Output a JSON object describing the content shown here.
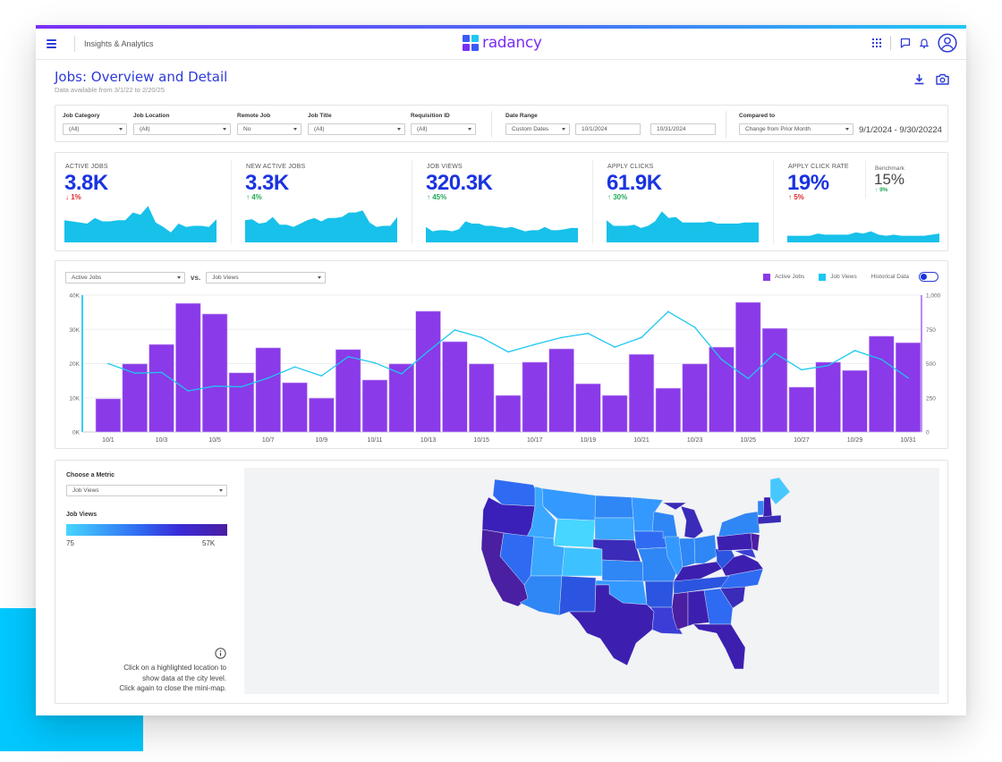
{
  "header": {
    "section_title": "Insights & Analytics",
    "brand": "radancy",
    "icons": [
      "menu-icon",
      "apps-grid-icon",
      "chat-icon",
      "bell-icon",
      "user-avatar-icon"
    ]
  },
  "page": {
    "title": "Jobs: Overview and Detail",
    "subtitle": "Data available from 3/1/22 to 2/20/25",
    "actions": [
      "download-icon",
      "camera-icon"
    ]
  },
  "filters": {
    "job_category": {
      "label": "Job Category",
      "value": "(All)"
    },
    "job_location": {
      "label": "Job Location",
      "value": "(All)"
    },
    "remote_job": {
      "label": "Remote Job",
      "value": "No"
    },
    "job_title": {
      "label": "Job Title",
      "value": "(All)"
    },
    "requisition_id": {
      "label": "Requisition ID",
      "value": "(All)"
    },
    "date_range": {
      "label": "Date Range",
      "value": "Custom Dates",
      "start": "10/1/2024",
      "end": "10/31/2024"
    },
    "compared_to": {
      "label": "Compared to",
      "value": "Change from Prior Month",
      "range_text": "9/1/2024 - 9/30/20224"
    }
  },
  "kpis": [
    {
      "label": "ACTIVE JOBS",
      "value": "3.8K",
      "delta": "1%",
      "direction": "down",
      "arrow": "↓",
      "spark": [
        20,
        19,
        18,
        17,
        22,
        19,
        19,
        20,
        20,
        27,
        25,
        33,
        18,
        14,
        9,
        17,
        14,
        15,
        15,
        14,
        21
      ]
    },
    {
      "label": "NEW ACTIVE JOBS",
      "value": "3.3K",
      "delta": "4%",
      "direction": "up",
      "arrow": "↑",
      "spark": [
        20,
        21,
        17,
        18,
        23,
        16,
        16,
        14,
        17,
        20,
        22,
        19,
        22,
        22,
        23,
        27,
        27,
        29,
        18,
        14,
        15,
        15,
        23
      ]
    },
    {
      "label": "JOB VIEWS",
      "value": "320.3K",
      "delta": "45%",
      "direction": "up",
      "arrow": "↑",
      "spark": [
        14,
        10,
        11,
        11,
        10,
        12,
        19,
        17,
        17,
        15,
        15,
        14,
        13,
        14,
        12,
        10,
        11,
        11,
        14,
        11,
        11,
        12,
        13,
        13
      ]
    },
    {
      "label": "APPLY CLICKS",
      "value": "61.9K",
      "delta": "30%",
      "direction": "up",
      "arrow": "↑",
      "spark": [
        20,
        15,
        15,
        15,
        16,
        13,
        15,
        19,
        28,
        22,
        23,
        18,
        18,
        18,
        18,
        19,
        17,
        17,
        17,
        17,
        18,
        18,
        18
      ]
    },
    {
      "label": "APPLY CLICK RATE",
      "value": "19%",
      "delta": "5%",
      "direction": "up_red",
      "arrow": "↑",
      "spark": [
        6,
        6,
        6,
        6,
        8,
        7,
        7,
        7,
        7,
        9,
        8,
        10,
        7,
        6,
        7,
        6,
        6,
        6,
        6,
        7,
        8
      ],
      "benchmark": {
        "label": "Benchmark",
        "value": "15%",
        "delta": "9%",
        "arrow": "↑"
      }
    }
  ],
  "combo_chart": {
    "primary_select": "Active Jobs",
    "vs_label": "vs.",
    "secondary_select": "Job Views",
    "legend": [
      {
        "label": "Active Jobs",
        "color": "#8a3ae8"
      },
      {
        "label": "Job Views",
        "color": "#1ec8f0"
      }
    ],
    "toggle_label": "Historical Data",
    "toggle_on": true
  },
  "chart_data": {
    "type": "bar",
    "title": "",
    "categories": [
      "10/1",
      "10/2",
      "10/3",
      "10/4",
      "10/5",
      "10/6",
      "10/7",
      "10/8",
      "10/9",
      "10/10",
      "10/11",
      "10/12",
      "10/13",
      "10/14",
      "10/15",
      "10/16",
      "10/17",
      "10/18",
      "10/19",
      "10/20",
      "10/21",
      "10/22",
      "10/23",
      "10/24",
      "10/25",
      "10/26",
      "10/27",
      "10/28",
      "10/29",
      "10/30",
      "10/31"
    ],
    "x_tick_labels": [
      "10/1",
      "10/3",
      "10/5",
      "10/7",
      "10/9",
      "10/11",
      "10/13",
      "10/15",
      "10/17",
      "10/19",
      "10/21",
      "10/23",
      "10/25",
      "10/27",
      "10/29",
      "10/31"
    ],
    "series": [
      {
        "name": "Active Jobs",
        "type": "bar",
        "axis": "left",
        "values": [
          9700,
          19900,
          25600,
          37600,
          34500,
          17300,
          24600,
          14400,
          9900,
          24100,
          15200,
          19900,
          35300,
          26400,
          19900,
          10700,
          20400,
          24300,
          14100,
          10700,
          22700,
          12800,
          19900,
          24800,
          37900,
          30300,
          13100,
          20400,
          18000,
          28000,
          26100
        ]
      },
      {
        "name": "Job Views",
        "type": "line",
        "axis": "right",
        "values": [
          500,
          430,
          435,
          300,
          335,
          330,
          395,
          475,
          410,
          550,
          505,
          425,
          590,
          745,
          690,
          585,
          640,
          690,
          720,
          620,
          690,
          880,
          765,
          530,
          390,
          575,
          455,
          485,
          595,
          530,
          395
        ]
      }
    ],
    "y_left": {
      "ticks": [
        "0K",
        "10K",
        "20K",
        "30K",
        "40K"
      ],
      "range": [
        0,
        40000
      ]
    },
    "y_right": {
      "ticks": [
        "0",
        "250",
        "500",
        "750",
        "1,000"
      ],
      "range": [
        0,
        1000
      ]
    },
    "grid": true,
    "legend_position": "top-right"
  },
  "map_panel": {
    "metric_label": "Choose a Metric",
    "metric_value": "Job Views",
    "scale_title": "Job Views",
    "scale_min": "75",
    "scale_max": "57K",
    "scale_colors": [
      "#46d6ff",
      "#2f6bf2",
      "#3a2bd6",
      "#4a1fa2"
    ],
    "hint_lines": [
      "Click on a highlighted location to",
      "show data at the city level.",
      "Click again to close the mini-map."
    ]
  }
}
